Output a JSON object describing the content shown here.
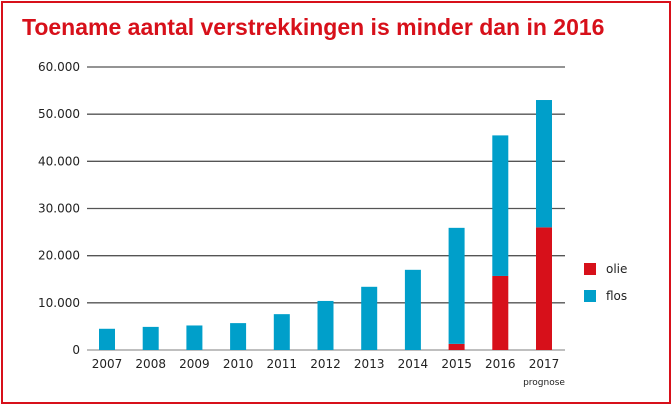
{
  "chart_data": {
    "type": "bar",
    "stacked": true,
    "title": "Toename aantal verstrekkingen is minder dan in 2016",
    "xlabel": "",
    "ylabel": "",
    "ylim": [
      0,
      60000
    ],
    "yticks": [
      0,
      10000,
      20000,
      30000,
      40000,
      50000,
      60000
    ],
    "ytick_labels": [
      "0",
      "10.000",
      "20.000",
      "30.000",
      "40.000",
      "50.000",
      "60.000"
    ],
    "categories": [
      "2007",
      "2008",
      "2009",
      "2010",
      "2011",
      "2012",
      "2013",
      "2014",
      "2015",
      "2016",
      "2017"
    ],
    "category_note": {
      "2017": "prognose"
    },
    "series": [
      {
        "name": "olie",
        "color": "#d7101a",
        "values": [
          0,
          0,
          0,
          0,
          0,
          0,
          0,
          0,
          1300,
          15700,
          26000
        ]
      },
      {
        "name": "flos",
        "color": "#009fca",
        "values": [
          4500,
          4900,
          5200,
          5700,
          7600,
          10400,
          13400,
          17000,
          24600,
          29800,
          27000
        ]
      }
    ],
    "grid": true,
    "legend_position": "right"
  }
}
